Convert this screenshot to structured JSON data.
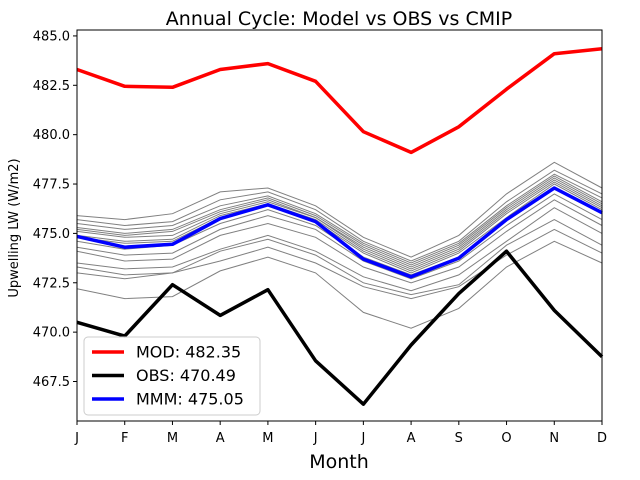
{
  "chart_data": {
    "type": "line",
    "title": "Annual Cycle: Model vs OBS vs CMIP",
    "xlabel": "Month",
    "ylabel": "Upwelling LW (W/m2)",
    "categories": [
      "J",
      "F",
      "M",
      "A",
      "M",
      "J",
      "J",
      "A",
      "S",
      "O",
      "N",
      "D"
    ],
    "ylim": [
      465.5,
      485.3
    ],
    "yticks": [
      467.5,
      470.0,
      472.5,
      475.0,
      477.5,
      480.0,
      482.5,
      485.0
    ],
    "ytick_labels": [
      "467.5",
      "470.0",
      "472.5",
      "475.0",
      "477.5",
      "480.0",
      "482.5",
      "485.0"
    ],
    "grid": false,
    "legend_position": "lower-left",
    "cmip_color": "#808080",
    "cmip_models": [
      [
        475.9,
        475.7,
        476.0,
        477.1,
        477.3,
        476.4,
        474.8,
        473.8,
        474.9,
        477.0,
        478.6,
        477.3
      ],
      [
        475.7,
        475.4,
        475.6,
        476.7,
        477.1,
        476.2,
        474.6,
        473.6,
        474.6,
        476.6,
        478.2,
        477.0
      ],
      [
        475.5,
        475.2,
        475.4,
        476.4,
        476.9,
        476.0,
        474.5,
        473.5,
        474.5,
        476.4,
        478.0,
        476.8
      ],
      [
        475.3,
        475.0,
        475.2,
        476.2,
        476.8,
        475.9,
        474.4,
        473.4,
        474.4,
        476.3,
        477.9,
        476.6
      ],
      [
        475.2,
        474.9,
        475.1,
        476.1,
        476.7,
        475.8,
        474.3,
        473.3,
        474.3,
        476.2,
        477.8,
        476.5
      ],
      [
        475.1,
        474.8,
        474.9,
        476.0,
        476.6,
        475.8,
        474.2,
        473.2,
        474.2,
        476.1,
        477.7,
        476.4
      ],
      [
        474.9,
        474.6,
        474.7,
        475.9,
        476.5,
        475.7,
        474.1,
        473.1,
        474.1,
        476.0,
        477.6,
        476.3
      ],
      [
        474.8,
        474.5,
        474.6,
        475.8,
        476.4,
        475.6,
        474.0,
        473.0,
        474.0,
        475.8,
        477.5,
        476.2
      ],
      [
        474.6,
        474.2,
        474.4,
        475.5,
        476.2,
        475.4,
        473.8,
        472.9,
        473.8,
        475.7,
        477.3,
        476.0
      ],
      [
        474.3,
        473.9,
        474.0,
        475.2,
        475.9,
        475.2,
        473.6,
        472.7,
        473.6,
        475.4,
        477.0,
        475.7
      ],
      [
        474.1,
        473.6,
        473.7,
        474.9,
        475.5,
        474.8,
        473.3,
        472.5,
        473.3,
        475.1,
        476.7,
        475.4
      ],
      [
        473.5,
        473.2,
        473.3,
        474.2,
        474.9,
        474.1,
        472.8,
        472.1,
        472.9,
        474.6,
        476.3,
        475.0
      ],
      [
        473.3,
        472.9,
        473.0,
        474.1,
        474.7,
        473.9,
        472.5,
        471.9,
        472.4,
        474.4,
        475.7,
        474.4
      ],
      [
        473.0,
        472.7,
        473.0,
        473.6,
        474.3,
        473.5,
        472.3,
        471.7,
        472.3,
        473.9,
        475.2,
        474.0
      ],
      [
        472.2,
        471.7,
        471.8,
        473.1,
        473.8,
        473.0,
        471.0,
        470.2,
        471.2,
        473.3,
        474.6,
        473.5
      ]
    ],
    "series": [
      {
        "name": "MOD",
        "color": "#ff0000",
        "legend_label": "MOD: 482.35",
        "values": [
          483.3,
          482.45,
          482.4,
          483.3,
          483.6,
          482.7,
          480.15,
          479.1,
          480.4,
          482.3,
          484.1,
          484.35
        ]
      },
      {
        "name": "OBS",
        "color": "#000000",
        "legend_label": "OBS: 470.49",
        "values": [
          470.5,
          469.8,
          472.4,
          470.85,
          472.15,
          468.55,
          466.35,
          469.35,
          471.95,
          474.1,
          471.1,
          468.75
        ]
      },
      {
        "name": "MMM",
        "color": "#0000ff",
        "legend_label": "MMM: 475.05",
        "values": [
          474.85,
          474.3,
          474.45,
          475.75,
          476.45,
          475.6,
          473.7,
          472.8,
          473.75,
          475.7,
          477.3,
          476.05
        ]
      }
    ]
  }
}
